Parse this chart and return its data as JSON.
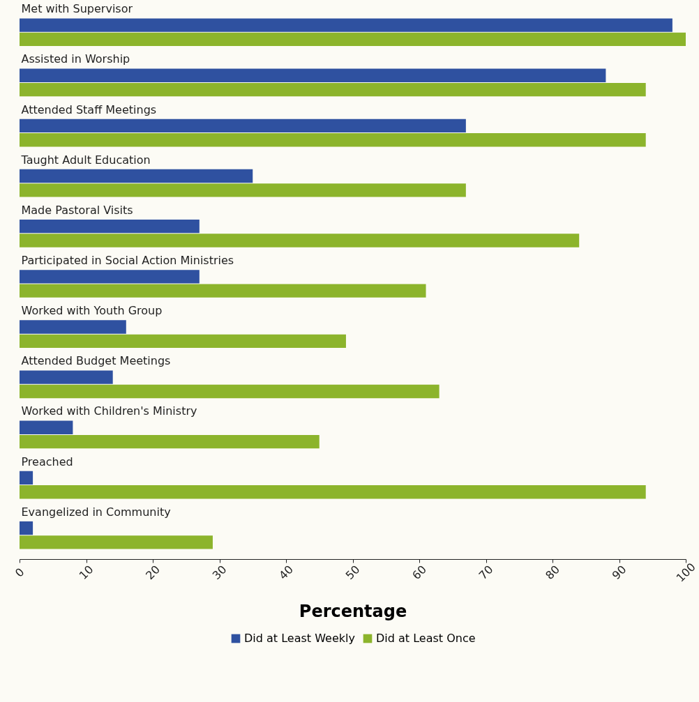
{
  "chart_data": {
    "type": "bar",
    "orientation": "horizontal",
    "xlabel": "Percentage",
    "categories": [
      "Met with Supervisor",
      "Assisted in Worship",
      "Attended Staff Meetings",
      "Taught Adult Education",
      "Made Pastoral Visits",
      "Participated in Social Action Ministries",
      "Worked with Youth Group",
      "Attended Budget Meetings",
      "Worked with Children's Ministry",
      "Preached",
      "Evangelized in Community"
    ],
    "series": [
      {
        "name": "Did at Least Weekly",
        "color": "#2f51a0",
        "values": [
          98,
          88,
          67,
          35,
          27,
          27,
          16,
          14,
          8,
          2,
          2
        ]
      },
      {
        "name": "Did at Least Once",
        "color": "#8cb42c",
        "values": [
          100,
          94,
          94,
          67,
          84,
          61,
          49,
          63,
          45,
          94,
          29
        ]
      }
    ],
    "xlim": [
      0,
      100
    ],
    "xticks": [
      0,
      10,
      20,
      30,
      40,
      50,
      60,
      70,
      80,
      90,
      100
    ],
    "grid": false,
    "legend": "bottom"
  }
}
